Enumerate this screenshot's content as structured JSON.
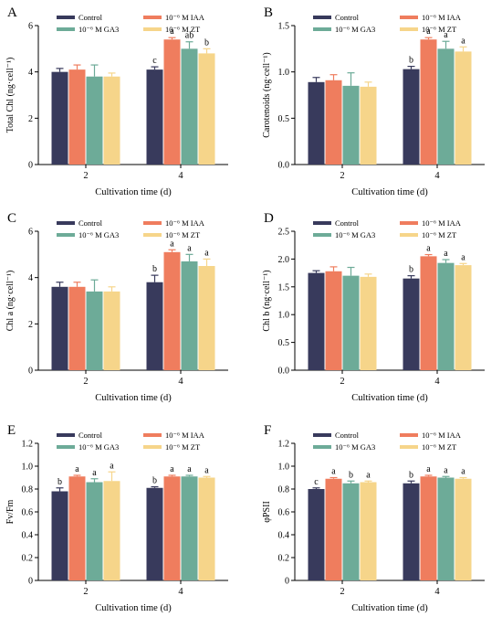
{
  "series_names": [
    "Control",
    "10⁻⁶ M IAA",
    "10⁻⁶ M GA3",
    "10⁻⁶ M ZT"
  ],
  "colors": [
    "#383a5c",
    "#ef7d5e",
    "#6dab98",
    "#f6d58a"
  ],
  "chart_data": [
    {
      "panel": "A",
      "type": "bar",
      "categories": [
        "2",
        "4"
      ],
      "xlabel": "Cultivation time (d)",
      "ylabel": "Total Chl (ng·cell⁻¹)",
      "ylim": [
        0,
        6
      ],
      "yticks": [
        "0",
        "2",
        "4",
        "6"
      ],
      "series": [
        {
          "name": "Control",
          "values": [
            4.0,
            4.1
          ],
          "errors": [
            0.15,
            0.12
          ],
          "letters": [
            "",
            "c"
          ]
        },
        {
          "name": "10⁻⁶ M IAA",
          "values": [
            4.1,
            5.4
          ],
          "errors": [
            0.2,
            0.08
          ],
          "letters": [
            "",
            "a"
          ]
        },
        {
          "name": "10⁻⁶ M GA3",
          "values": [
            3.8,
            5.0
          ],
          "errors": [
            0.5,
            0.3
          ],
          "letters": [
            "",
            "ab"
          ]
        },
        {
          "name": "10⁻⁶ M ZT",
          "values": [
            3.8,
            4.8
          ],
          "errors": [
            0.15,
            0.2
          ],
          "letters": [
            "",
            "b"
          ]
        }
      ]
    },
    {
      "panel": "B",
      "type": "bar",
      "categories": [
        "2",
        "4"
      ],
      "xlabel": "Cultivation time (d)",
      "ylabel": "Carotenoids (ng·cell⁻¹)",
      "ylim": [
        0,
        1.5
      ],
      "yticks": [
        "0.0",
        "0.5",
        "1.0",
        "1.5"
      ],
      "series": [
        {
          "name": "Control",
          "values": [
            0.89,
            1.03
          ],
          "errors": [
            0.05,
            0.03
          ],
          "letters": [
            "",
            "b"
          ]
        },
        {
          "name": "10⁻⁶ M IAA",
          "values": [
            0.91,
            1.35
          ],
          "errors": [
            0.06,
            0.02
          ],
          "letters": [
            "",
            "a"
          ]
        },
        {
          "name": "10⁻⁶ M GA3",
          "values": [
            0.85,
            1.25
          ],
          "errors": [
            0.14,
            0.08
          ],
          "letters": [
            "",
            "a"
          ]
        },
        {
          "name": "10⁻⁶ M ZT",
          "values": [
            0.84,
            1.22
          ],
          "errors": [
            0.05,
            0.05
          ],
          "letters": [
            "",
            "a"
          ]
        }
      ]
    },
    {
      "panel": "C",
      "type": "bar",
      "categories": [
        "2",
        "4"
      ],
      "xlabel": "Cultivation time (d)",
      "ylabel": "Chl a (ng·cell⁻¹)",
      "ylim": [
        0,
        6
      ],
      "yticks": [
        "0",
        "2",
        "4",
        "6"
      ],
      "series": [
        {
          "name": "Control",
          "values": [
            3.6,
            3.8
          ],
          "errors": [
            0.2,
            0.3
          ],
          "letters": [
            "",
            "b"
          ]
        },
        {
          "name": "10⁻⁶ M IAA",
          "values": [
            3.6,
            5.1
          ],
          "errors": [
            0.2,
            0.1
          ],
          "letters": [
            "",
            "a"
          ]
        },
        {
          "name": "10⁻⁶ M GA3",
          "values": [
            3.4,
            4.7
          ],
          "errors": [
            0.5,
            0.3
          ],
          "letters": [
            "",
            "a"
          ]
        },
        {
          "name": "10⁻⁶ M ZT",
          "values": [
            3.4,
            4.5
          ],
          "errors": [
            0.2,
            0.3
          ],
          "letters": [
            "",
            "a"
          ]
        }
      ]
    },
    {
      "panel": "D",
      "type": "bar",
      "categories": [
        "2",
        "4"
      ],
      "xlabel": "Cultivation time (d)",
      "ylabel": "Chl b (ng·cell⁻¹)",
      "ylim": [
        0,
        2.5
      ],
      "yticks": [
        "0.0",
        "0.5",
        "1.0",
        "1.5",
        "2.0",
        "2.5"
      ],
      "series": [
        {
          "name": "Control",
          "values": [
            1.75,
            1.65
          ],
          "errors": [
            0.04,
            0.05
          ],
          "letters": [
            "",
            "b"
          ]
        },
        {
          "name": "10⁻⁶ M IAA",
          "values": [
            1.78,
            2.05
          ],
          "errors": [
            0.08,
            0.03
          ],
          "letters": [
            "",
            "a"
          ]
        },
        {
          "name": "10⁻⁶ M GA3",
          "values": [
            1.7,
            1.93
          ],
          "errors": [
            0.15,
            0.06
          ],
          "letters": [
            "",
            "a"
          ]
        },
        {
          "name": "10⁻⁶ M ZT",
          "values": [
            1.68,
            1.89
          ],
          "errors": [
            0.05,
            0.03
          ],
          "letters": [
            "",
            "a"
          ]
        }
      ]
    },
    {
      "panel": "E",
      "type": "bar",
      "categories": [
        "2",
        "4"
      ],
      "xlabel": "Cultivation time (d)",
      "ylabel": "Fv/Fm",
      "ylim": [
        0,
        1.2
      ],
      "yticks": [
        "0",
        "0.2",
        "0.4",
        "0.6",
        "0.8",
        "1.0",
        "1.2"
      ],
      "series": [
        {
          "name": "Control",
          "values": [
            0.78,
            0.81
          ],
          "errors": [
            0.03,
            0.01
          ],
          "letters": [
            "b",
            "b"
          ]
        },
        {
          "name": "10⁻⁶ M IAA",
          "values": [
            0.91,
            0.91
          ],
          "errors": [
            0.01,
            0.01
          ],
          "letters": [
            "a",
            "a"
          ]
        },
        {
          "name": "10⁻⁶ M GA3",
          "values": [
            0.86,
            0.91
          ],
          "errors": [
            0.03,
            0.01
          ],
          "letters": [
            "a",
            "a"
          ]
        },
        {
          "name": "10⁻⁶ M ZT",
          "values": [
            0.87,
            0.9
          ],
          "errors": [
            0.08,
            0.01
          ],
          "letters": [
            "a",
            "a"
          ]
        }
      ]
    },
    {
      "panel": "F",
      "type": "bar",
      "categories": [
        "2",
        "4"
      ],
      "xlabel": "Cultivation time (d)",
      "ylabel": "φPSII",
      "ylim": [
        0,
        1.2
      ],
      "yticks": [
        "0",
        "0.2",
        "0.4",
        "0.6",
        "0.8",
        "1.0",
        "1.2"
      ],
      "series": [
        {
          "name": "Control",
          "values": [
            0.8,
            0.85
          ],
          "errors": [
            0.01,
            0.02
          ],
          "letters": [
            "c",
            "b"
          ]
        },
        {
          "name": "10⁻⁶ M IAA",
          "values": [
            0.89,
            0.91
          ],
          "errors": [
            0.01,
            0.01
          ],
          "letters": [
            "a",
            "a"
          ]
        },
        {
          "name": "10⁻⁶ M GA3",
          "values": [
            0.85,
            0.9
          ],
          "errors": [
            0.02,
            0.01
          ],
          "letters": [
            "b",
            "a"
          ]
        },
        {
          "name": "10⁻⁶ M ZT",
          "values": [
            0.86,
            0.89
          ],
          "errors": [
            0.01,
            0.01
          ],
          "letters": [
            "a",
            "a"
          ]
        }
      ]
    }
  ]
}
